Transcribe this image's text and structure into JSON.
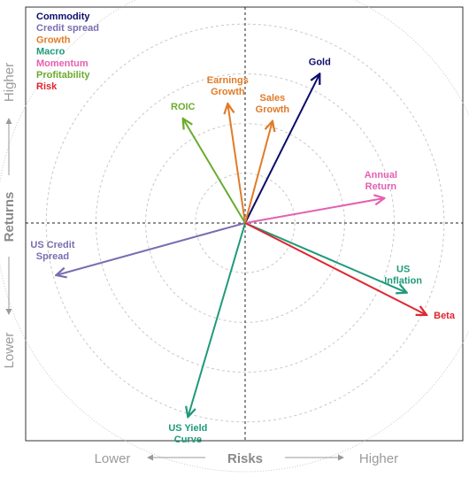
{
  "chart_data": {
    "type": "vector-quadrant",
    "xlabel": "Risks",
    "ylabel": "Returns",
    "x_low_label": "Lower",
    "x_high_label": "Higher",
    "y_low_label": "Lower",
    "y_high_label": "Higher",
    "xlim": [
      -1,
      1
    ],
    "ylim": [
      -1,
      1
    ],
    "rings": [
      0.2,
      0.4,
      0.6,
      0.8,
      1.0
    ],
    "grid": "concentric dotted circles",
    "legend_position": "top-left",
    "legend": [
      {
        "name": "Commodity",
        "color": "#0d0d6b"
      },
      {
        "name": "Credit spread",
        "color": "#7a6db0"
      },
      {
        "name": "Growth",
        "color": "#e07b28"
      },
      {
        "name": "Macro",
        "color": "#1f9a7a"
      },
      {
        "name": "Momentum",
        "color": "#e55fb2"
      },
      {
        "name": "Profitability",
        "color": "#6aab2e"
      },
      {
        "name": "Risk",
        "color": "#e0262f"
      }
    ],
    "vectors": [
      {
        "label": [
          "Gold"
        ],
        "category": "Commodity",
        "x": 0.3,
        "y": 0.6,
        "color": "#0d0d6b"
      },
      {
        "label": [
          "US Credit",
          "Spread"
        ],
        "category": "Credit spread",
        "x": -0.76,
        "y": -0.21,
        "color": "#7a6db0"
      },
      {
        "label": [
          "Earnings",
          "Growth"
        ],
        "category": "Growth",
        "x": -0.07,
        "y": 0.48,
        "color": "#e07b28"
      },
      {
        "label": [
          "Sales",
          "Growth"
        ],
        "category": "Growth",
        "x": 0.11,
        "y": 0.41,
        "color": "#e07b28"
      },
      {
        "label": [
          "US",
          "Inflation"
        ],
        "category": "Macro",
        "x": 0.65,
        "y": -0.28,
        "color": "#1f9a7a"
      },
      {
        "label": [
          "US Yield",
          "Curve"
        ],
        "category": "Macro",
        "x": -0.23,
        "y": -0.78,
        "color": "#1f9a7a"
      },
      {
        "label": [
          "Annual",
          "Return"
        ],
        "category": "Momentum",
        "x": 0.56,
        "y": 0.1,
        "color": "#e55fb2"
      },
      {
        "label": [
          "ROIC"
        ],
        "category": "Profitability",
        "x": -0.25,
        "y": 0.42,
        "color": "#6aab2e"
      },
      {
        "label": [
          "Beta"
        ],
        "category": "Risk",
        "x": 0.73,
        "y": -0.37,
        "color": "#e0262f"
      }
    ]
  }
}
